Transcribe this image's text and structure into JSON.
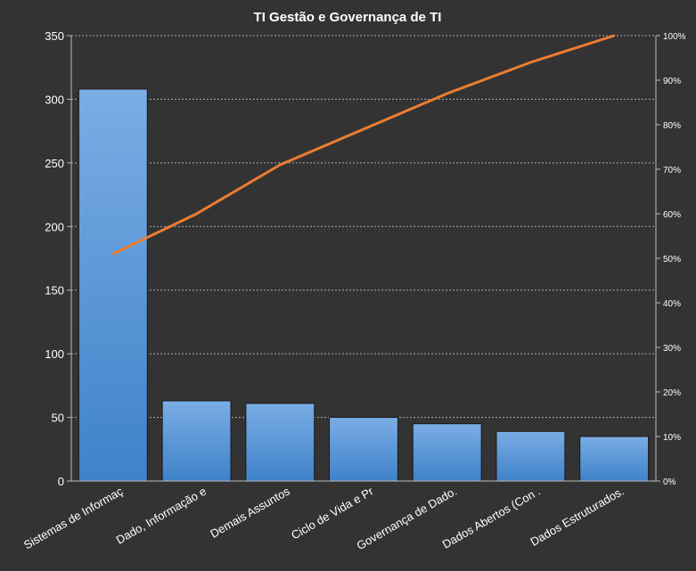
{
  "chart_data": {
    "type": "bar",
    "title": "TI Gestão  e Governança  de TI",
    "categories": [
      "Sistemas de Informaç",
      "Dado, Informação e",
      "Demais Assuntos",
      "Ciclo de Vida e Pr",
      "Governança de Dado.",
      "Dados Abertos  (Con .",
      "Dados Estruturados."
    ],
    "series": [
      {
        "type": "bar",
        "values": [
          308,
          63,
          61,
          50,
          45,
          39,
          35
        ]
      },
      {
        "type": "line",
        "axis": "right",
        "values": [
          51,
          60,
          71,
          79,
          87,
          94,
          100
        ]
      }
    ],
    "ylim": [
      0,
      350
    ],
    "yticks": [
      "0",
      "50",
      "100",
      "150",
      "200",
      "250",
      "300",
      "350"
    ],
    "y2lim": [
      0,
      100
    ],
    "y2ticks": [
      "0%",
      "10%",
      "20%",
      "30%",
      "40%",
      "50%",
      "60%",
      "70%",
      "80%",
      "90%",
      "100%"
    ],
    "grid": true,
    "legend": "none",
    "colors": {
      "bar": "#4a8fd8",
      "line": "#ed7d31",
      "background": "#333333",
      "grid": "#aaaaaa"
    }
  }
}
